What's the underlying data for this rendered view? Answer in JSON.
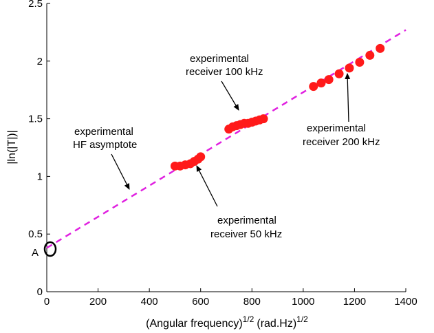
{
  "chart_data": {
    "type": "scatter",
    "xlabel": "(Angular frequency)",
    "xlabel_exp": "1/2",
    "xlabel_unit": "(rad.Hz)",
    "xlabel_unit_exp": "1/2",
    "ylabel": "|ln(|T|)|",
    "xlim": [
      0,
      1400
    ],
    "ylim": [
      0,
      2.5
    ],
    "xticks": [
      "0",
      "200",
      "400",
      "600",
      "800",
      "1000",
      "1200",
      "1400"
    ],
    "yticks": [
      "0",
      "0.5",
      "1",
      "1.5",
      "2",
      "2.5"
    ],
    "grid": false,
    "colors": {
      "points": "#ff1a1a",
      "asymptote": "#e020e0",
      "marker": "#000000"
    },
    "asymptote": {
      "x": [
        0,
        1400
      ],
      "y": [
        0.38,
        2.27
      ],
      "style": "dashed"
    },
    "series": [
      {
        "x": [
          500,
          520,
          540,
          560,
          575,
          590,
          600
        ],
        "y": [
          1.09,
          1.09,
          1.1,
          1.11,
          1.13,
          1.15,
          1.17
        ]
      },
      {
        "x": [
          710,
          725,
          740,
          755,
          770,
          785,
          800,
          815,
          830,
          845
        ],
        "y": [
          1.41,
          1.43,
          1.44,
          1.45,
          1.46,
          1.46,
          1.47,
          1.48,
          1.49,
          1.5
        ]
      },
      {
        "x": [
          1040,
          1070,
          1100,
          1140,
          1180,
          1220,
          1260,
          1300
        ],
        "y": [
          1.78,
          1.81,
          1.84,
          1.89,
          1.94,
          1.99,
          2.05,
          2.11
        ]
      }
    ],
    "marker_point": {
      "x": 0,
      "y": 0.37,
      "label": "A"
    },
    "annotations": [
      {
        "lines": [
          "experimental",
          "receiver 100 kHz"
        ],
        "target": {
          "x": 775,
          "y": 1.45
        }
      },
      {
        "lines": [
          "experimental",
          "HF asymptote"
        ],
        "target": {
          "x": 330,
          "y": 0.82
        }
      },
      {
        "lines": [
          "experimental",
          "receiver 200 kHz"
        ],
        "target": {
          "x": 1175,
          "y": 1.94
        }
      },
      {
        "lines": [
          "experimental",
          "receiver 50 kHz"
        ],
        "target": {
          "x": 565,
          "y": 1.11
        }
      }
    ]
  }
}
